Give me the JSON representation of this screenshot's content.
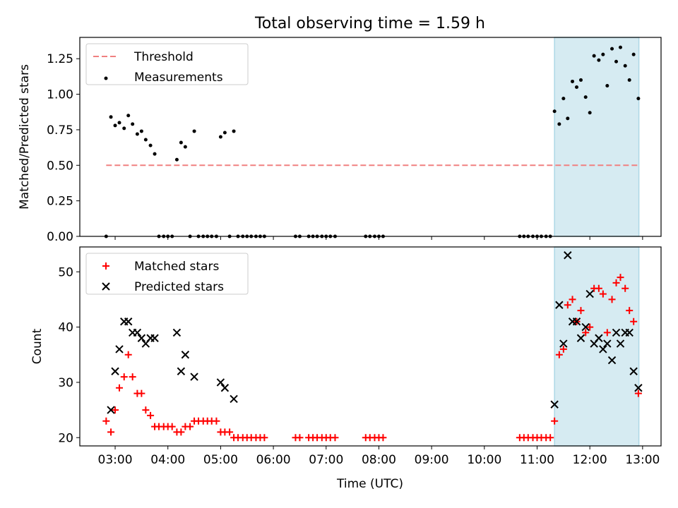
{
  "title": "Total observing time = 1.59 h",
  "colors": {
    "threshold": "#f08080",
    "measurement": "#000000",
    "matched": "#ff0000",
    "predicted": "#000000",
    "shade": "#add8e6"
  },
  "chart_data": [
    {
      "type": "scatter",
      "ylabel": "Matched/Predicted stars",
      "ylim": [
        0,
        1.4
      ],
      "yticks": [
        0,
        0.25,
        0.5,
        0.75,
        1.0,
        1.25
      ],
      "ytick_labels": [
        "0.00",
        "0.25",
        "0.50",
        "0.75",
        "1.00",
        "1.25"
      ],
      "xlim": [
        2.33,
        13.35
      ],
      "legend_position": "top-left",
      "highlight_span": [
        11.33,
        12.93
      ],
      "threshold": {
        "name": "Threshold",
        "y": 0.5,
        "x_range": [
          2.83,
          12.93
        ]
      },
      "series": [
        {
          "name": "Measurements",
          "points": [
            [
              2.83,
              0.0
            ],
            [
              2.92,
              0.84
            ],
            [
              3.0,
              0.78
            ],
            [
              3.08,
              0.8
            ],
            [
              3.17,
              0.76
            ],
            [
              3.25,
              0.85
            ],
            [
              3.33,
              0.79
            ],
            [
              3.42,
              0.72
            ],
            [
              3.5,
              0.74
            ],
            [
              3.58,
              0.68
            ],
            [
              3.67,
              0.64
            ],
            [
              3.75,
              0.58
            ],
            [
              3.83,
              0.0
            ],
            [
              3.92,
              0.0
            ],
            [
              4.0,
              0.0
            ],
            [
              4.08,
              0.0
            ],
            [
              4.17,
              0.54
            ],
            [
              4.25,
              0.66
            ],
            [
              4.33,
              0.63
            ],
            [
              4.42,
              0.0
            ],
            [
              4.5,
              0.74
            ],
            [
              4.58,
              0.0
            ],
            [
              4.67,
              0.0
            ],
            [
              4.75,
              0.0
            ],
            [
              4.83,
              0.0
            ],
            [
              4.92,
              0.0
            ],
            [
              5.0,
              0.7
            ],
            [
              5.08,
              0.73
            ],
            [
              5.17,
              0.0
            ],
            [
              5.25,
              0.74
            ],
            [
              5.33,
              0.0
            ],
            [
              5.42,
              0.0
            ],
            [
              5.5,
              0.0
            ],
            [
              5.58,
              0.0
            ],
            [
              5.67,
              0.0
            ],
            [
              5.75,
              0.0
            ],
            [
              5.83,
              0.0
            ],
            [
              6.42,
              0.0
            ],
            [
              6.5,
              0.0
            ],
            [
              6.67,
              0.0
            ],
            [
              6.75,
              0.0
            ],
            [
              6.83,
              0.0
            ],
            [
              6.92,
              0.0
            ],
            [
              7.0,
              0.0
            ],
            [
              7.08,
              0.0
            ],
            [
              7.17,
              0.0
            ],
            [
              7.75,
              0.0
            ],
            [
              7.83,
              0.0
            ],
            [
              7.92,
              0.0
            ],
            [
              8.0,
              0.0
            ],
            [
              8.08,
              0.0
            ],
            [
              10.67,
              0.0
            ],
            [
              10.75,
              0.0
            ],
            [
              10.83,
              0.0
            ],
            [
              10.92,
              0.0
            ],
            [
              11.0,
              0.0
            ],
            [
              11.08,
              0.0
            ],
            [
              11.17,
              0.0
            ],
            [
              11.25,
              0.0
            ],
            [
              11.33,
              0.88
            ],
            [
              11.42,
              0.79
            ],
            [
              11.5,
              0.97
            ],
            [
              11.58,
              0.83
            ],
            [
              11.67,
              1.09
            ],
            [
              11.75,
              1.05
            ],
            [
              11.83,
              1.1
            ],
            [
              11.92,
              0.98
            ],
            [
              12.0,
              0.87
            ],
            [
              12.08,
              1.27
            ],
            [
              12.17,
              1.24
            ],
            [
              12.25,
              1.28
            ],
            [
              12.33,
              1.06
            ],
            [
              12.42,
              1.32
            ],
            [
              12.5,
              1.23
            ],
            [
              12.58,
              1.33
            ],
            [
              12.67,
              1.2
            ],
            [
              12.75,
              1.1
            ],
            [
              12.83,
              1.28
            ],
            [
              12.92,
              0.97
            ]
          ]
        }
      ]
    },
    {
      "type": "scatter",
      "xlabel": "Time (UTC)",
      "ylabel": "Count",
      "ylim": [
        18.5,
        54.5
      ],
      "yticks": [
        20,
        30,
        40,
        50
      ],
      "ytick_labels": [
        "20",
        "30",
        "40",
        "50"
      ],
      "xlim": [
        2.33,
        13.35
      ],
      "xticks": [
        3,
        4,
        5,
        6,
        7,
        8,
        9,
        10,
        11,
        12,
        13
      ],
      "xtick_labels": [
        "03:00",
        "04:00",
        "05:00",
        "06:00",
        "07:00",
        "08:00",
        "09:00",
        "10:00",
        "11:00",
        "12:00",
        "13:00"
      ],
      "legend_position": "top-left",
      "highlight_span": [
        11.33,
        12.93
      ],
      "series": [
        {
          "name": "Matched stars",
          "points": [
            [
              2.83,
              23
            ],
            [
              2.92,
              21
            ],
            [
              3.0,
              25
            ],
            [
              3.08,
              29
            ],
            [
              3.17,
              31
            ],
            [
              3.25,
              35
            ],
            [
              3.33,
              31
            ],
            [
              3.42,
              28
            ],
            [
              3.5,
              28
            ],
            [
              3.58,
              25
            ],
            [
              3.67,
              24
            ],
            [
              3.75,
              22
            ],
            [
              3.83,
              22
            ],
            [
              3.92,
              22
            ],
            [
              4.0,
              22
            ],
            [
              4.08,
              22
            ],
            [
              4.17,
              21
            ],
            [
              4.25,
              21
            ],
            [
              4.33,
              22
            ],
            [
              4.42,
              22
            ],
            [
              4.5,
              23
            ],
            [
              4.58,
              23
            ],
            [
              4.67,
              23
            ],
            [
              4.75,
              23
            ],
            [
              4.83,
              23
            ],
            [
              4.92,
              23
            ],
            [
              5.0,
              21
            ],
            [
              5.08,
              21
            ],
            [
              5.17,
              21
            ],
            [
              5.25,
              20
            ],
            [
              5.33,
              20
            ],
            [
              5.42,
              20
            ],
            [
              5.5,
              20
            ],
            [
              5.58,
              20
            ],
            [
              5.67,
              20
            ],
            [
              5.75,
              20
            ],
            [
              5.83,
              20
            ],
            [
              6.42,
              20
            ],
            [
              6.5,
              20
            ],
            [
              6.67,
              20
            ],
            [
              6.75,
              20
            ],
            [
              6.83,
              20
            ],
            [
              6.92,
              20
            ],
            [
              7.0,
              20
            ],
            [
              7.08,
              20
            ],
            [
              7.17,
              20
            ],
            [
              7.75,
              20
            ],
            [
              7.83,
              20
            ],
            [
              7.92,
              20
            ],
            [
              8.0,
              20
            ],
            [
              8.08,
              20
            ],
            [
              10.67,
              20
            ],
            [
              10.75,
              20
            ],
            [
              10.83,
              20
            ],
            [
              10.92,
              20
            ],
            [
              11.0,
              20
            ],
            [
              11.08,
              20
            ],
            [
              11.17,
              20
            ],
            [
              11.25,
              20
            ],
            [
              11.33,
              23
            ],
            [
              11.42,
              35
            ],
            [
              11.5,
              36
            ],
            [
              11.58,
              44
            ],
            [
              11.67,
              45
            ],
            [
              11.75,
              41
            ],
            [
              11.83,
              43
            ],
            [
              11.92,
              39
            ],
            [
              12.0,
              40
            ],
            [
              12.08,
              47
            ],
            [
              12.17,
              47
            ],
            [
              12.25,
              46
            ],
            [
              12.33,
              39
            ],
            [
              12.42,
              45
            ],
            [
              12.5,
              48
            ],
            [
              12.58,
              49
            ],
            [
              12.67,
              47
            ],
            [
              12.75,
              43
            ],
            [
              12.83,
              41
            ],
            [
              12.92,
              28
            ]
          ]
        },
        {
          "name": "Predicted stars",
          "points": [
            [
              2.92,
              25
            ],
            [
              3.0,
              32
            ],
            [
              3.08,
              36
            ],
            [
              3.17,
              41
            ],
            [
              3.25,
              41
            ],
            [
              3.33,
              39
            ],
            [
              3.42,
              39
            ],
            [
              3.5,
              38
            ],
            [
              3.58,
              37
            ],
            [
              3.67,
              38
            ],
            [
              3.75,
              38
            ],
            [
              4.17,
              39
            ],
            [
              4.25,
              32
            ],
            [
              4.33,
              35
            ],
            [
              4.5,
              31
            ],
            [
              5.0,
              30
            ],
            [
              5.08,
              29
            ],
            [
              5.25,
              27
            ],
            [
              11.33,
              26
            ],
            [
              11.42,
              44
            ],
            [
              11.5,
              37
            ],
            [
              11.58,
              53
            ],
            [
              11.67,
              41
            ],
            [
              11.75,
              41
            ],
            [
              11.83,
              38
            ],
            [
              11.92,
              40
            ],
            [
              12.0,
              46
            ],
            [
              12.08,
              37
            ],
            [
              12.17,
              38
            ],
            [
              12.25,
              36
            ],
            [
              12.33,
              37
            ],
            [
              12.42,
              34
            ],
            [
              12.5,
              39
            ],
            [
              12.58,
              37
            ],
            [
              12.67,
              39
            ],
            [
              12.75,
              39
            ],
            [
              12.83,
              32
            ],
            [
              12.92,
              29
            ]
          ]
        }
      ]
    }
  ]
}
